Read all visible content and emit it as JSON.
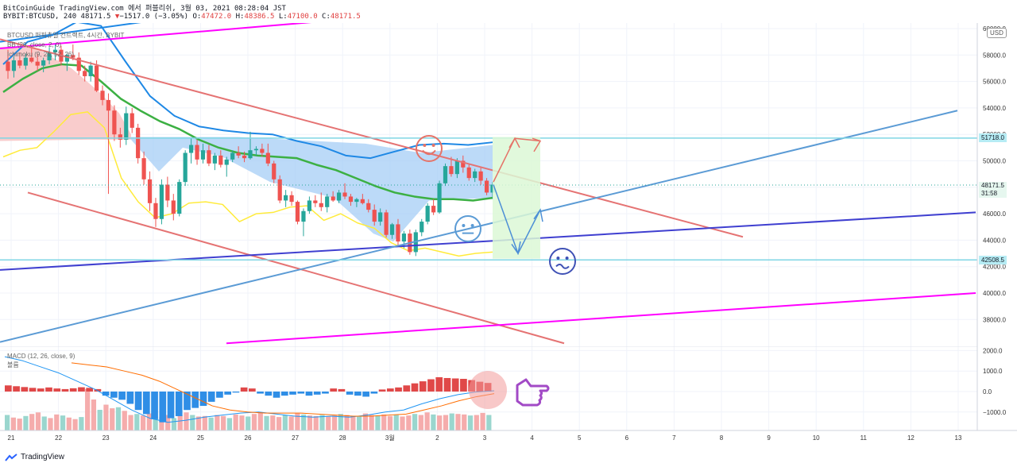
{
  "header": {
    "line1_prefix": "BitCoinGuide TradingView.com 에서 퍼블리쉬, 3월 03, 2021 08:28:04 JST",
    "symbol_line": "BYBIT:BTCUSD, 240 48171.5",
    "change_arrow": "▼",
    "change": "−1517.0 (−3.05%)",
    "o_label": "O:",
    "o_value": "47472.0",
    "h_label": "H:",
    "h_value": "48386.5",
    "l_label": "L:",
    "l_value": "47100.0",
    "c_label": "C:",
    "c_value": "48171.5"
  },
  "legend": {
    "main": "BTCUSD 퍼피츄얼 컨트랙트, 4시간, BYBIT",
    "bb": "BB (20, close, 2, 0)",
    "ichimoku": "Ichimoku (9, 26, 52, 26)",
    "macd": "MACD (12, 26, close, 9)",
    "macd_sub": "볼륨"
  },
  "currency_badge": "USD",
  "price_tags": [
    {
      "value": "51718.0",
      "color": "#b6ecf4"
    },
    {
      "value": "48171.5",
      "sub": "31:58",
      "color": "#e6f7ef"
    },
    {
      "value": "42508.5",
      "color": "#b6ecf4"
    }
  ],
  "footer": {
    "brand": "TradingView"
  },
  "colors": {
    "up": "#26a69a",
    "down": "#ef5350",
    "bb_basis": "#3cb043",
    "bb_upper": "#1e88e5",
    "tenkan": "#ffeb3b",
    "cloud_red": "#f8c3c3",
    "cloud_blue": "#9fcbf5",
    "magenta": "#ff00ff",
    "indigo": "#3f3fd0",
    "channel": "#e57373",
    "trend_blue": "#5b9bd5",
    "hline": "#7fd6e4"
  },
  "chart_data": [
    {
      "type": "candlestick",
      "title": "BTCUSD 퍼피츄얼 컨트랙트, 4시간, BYBIT",
      "timeframe": "240",
      "x_tick_labels": [
        "21",
        "22",
        "23",
        "24",
        "25",
        "26",
        "27",
        "28",
        "3월",
        "2",
        "3",
        "4",
        "5",
        "6",
        "7",
        "8",
        "9",
        "10",
        "11",
        "12",
        "13"
      ],
      "y_tick_labels": [
        "60000.0",
        "58000.0",
        "56000.0",
        "54000.0",
        "52000.0",
        "50000.0",
        "48000.0",
        "46000.0",
        "44000.0",
        "42000.0",
        "40000.0",
        "38000.0"
      ],
      "ylim": [
        36200,
        60500
      ],
      "candles_ohlc": [
        [
          57500,
          58400,
          56200,
          56800
        ],
        [
          56800,
          57900,
          56300,
          57600
        ],
        [
          57600,
          58200,
          57000,
          57200
        ],
        [
          57200,
          58100,
          56900,
          57800
        ],
        [
          57800,
          58500,
          57400,
          57500
        ],
        [
          57500,
          58100,
          56800,
          57200
        ],
        [
          57200,
          57800,
          56700,
          57600
        ],
        [
          57600,
          58600,
          57300,
          58200
        ],
        [
          58200,
          58900,
          57600,
          58400
        ],
        [
          58400,
          58700,
          57200,
          57500
        ],
        [
          57500,
          58100,
          56800,
          58000
        ],
        [
          58000,
          58800,
          57600,
          57800
        ],
        [
          57800,
          58200,
          56500,
          56800
        ],
        [
          56800,
          57200,
          56000,
          56400
        ],
        [
          56400,
          57500,
          56000,
          57200
        ],
        [
          57200,
          57600,
          55200,
          55300
        ],
        [
          55300,
          55700,
          54200,
          54600
        ],
        [
          54600,
          55100,
          47500,
          53800
        ],
        [
          53800,
          54200,
          51500,
          52000
        ],
        [
          52000,
          52500,
          51000,
          51600
        ],
        [
          51600,
          54100,
          51200,
          53600
        ],
        [
          53600,
          54000,
          52100,
          52500
        ],
        [
          52500,
          52800,
          49800,
          50200
        ],
        [
          50200,
          50700,
          48200,
          48600
        ],
        [
          48600,
          49200,
          46200,
          46800
        ],
        [
          46800,
          47200,
          45000,
          45600
        ],
        [
          45600,
          48600,
          45200,
          48200
        ],
        [
          48200,
          48800,
          46500,
          47000
        ],
        [
          47000,
          47500,
          45500,
          46000
        ],
        [
          46000,
          48600,
          45800,
          48400
        ],
        [
          48400,
          50800,
          48100,
          50600
        ],
        [
          50600,
          51700,
          49800,
          51200
        ],
        [
          51200,
          51600,
          49700,
          50100
        ],
        [
          50100,
          51300,
          49800,
          50800
        ],
        [
          50800,
          51200,
          49600,
          49800
        ],
        [
          49800,
          50600,
          49300,
          50400
        ],
        [
          50400,
          50800,
          49500,
          49700
        ],
        [
          49700,
          50300,
          48800,
          50100
        ],
        [
          50100,
          50800,
          49900,
          50600
        ],
        [
          50600,
          51100,
          50200,
          50400
        ],
        [
          50400,
          50700,
          49900,
          50200
        ],
        [
          50200,
          52200,
          50100,
          50800
        ],
        [
          50800,
          51100,
          50400,
          50900
        ],
        [
          50900,
          51300,
          50300,
          50600
        ],
        [
          50600,
          51300,
          49600,
          49800
        ],
        [
          49800,
          50000,
          48300,
          48600
        ],
        [
          48600,
          48900,
          46800,
          47000
        ],
        [
          47000,
          47800,
          46500,
          47400
        ],
        [
          47400,
          47700,
          46600,
          46900
        ],
        [
          46900,
          47000,
          45200,
          45400
        ],
        [
          45400,
          46400,
          44300,
          46200
        ],
        [
          46200,
          47300,
          46000,
          47000
        ],
        [
          47000,
          47400,
          46500,
          46800
        ],
        [
          46800,
          47600,
          46200,
          46500
        ],
        [
          46500,
          47500,
          46100,
          47300
        ],
        [
          47300,
          47700,
          46900,
          47000
        ],
        [
          47000,
          47800,
          46800,
          47600
        ],
        [
          47600,
          48300,
          47100,
          47300
        ],
        [
          47300,
          47500,
          46600,
          46900
        ],
        [
          46900,
          47200,
          46500,
          47100
        ],
        [
          47100,
          47500,
          46700,
          46800
        ],
        [
          46800,
          47100,
          46100,
          46300
        ],
        [
          46300,
          46700,
          45100,
          45400
        ],
        [
          45400,
          46400,
          45100,
          46100
        ],
        [
          46100,
          46300,
          44200,
          44400
        ],
        [
          44400,
          45300,
          44100,
          45200
        ],
        [
          45200,
          45600,
          43600,
          43900
        ],
        [
          43900,
          44700,
          43400,
          44500
        ],
        [
          44500,
          44800,
          42900,
          43100
        ],
        [
          43100,
          44800,
          42800,
          44600
        ],
        [
          44600,
          45600,
          44300,
          45400
        ],
        [
          45400,
          46800,
          45200,
          46600
        ],
        [
          46600,
          47100,
          45900,
          46100
        ],
        [
          46100,
          48500,
          46000,
          48300
        ],
        [
          48300,
          49800,
          48100,
          49600
        ],
        [
          49600,
          50300,
          48800,
          49000
        ],
        [
          49000,
          50200,
          48700,
          50000
        ],
        [
          50000,
          50400,
          49100,
          49500
        ],
        [
          49500,
          49800,
          48500,
          48700
        ],
        [
          48700,
          49400,
          48400,
          49200
        ],
        [
          49200,
          49500,
          48200,
          48500
        ],
        [
          48500,
          48700,
          47400,
          47600
        ],
        [
          47600,
          48400,
          47100,
          48200
        ]
      ],
      "bollinger_basis": [
        55200,
        56200,
        57000,
        57300,
        57200,
        56000,
        54700,
        53800,
        53000,
        52400,
        51600,
        51000,
        50600,
        50400,
        50300,
        50200,
        49700,
        49300,
        48700,
        48100,
        47600,
        47300,
        47100,
        47100,
        47000,
        47200
      ],
      "bollinger_upper": [
        57300,
        59000,
        59500,
        60500,
        60200,
        57500,
        54900,
        53400,
        52600,
        52300,
        52100,
        52000,
        51500,
        51100,
        50400,
        50200,
        50700,
        51200,
        51300,
        51200,
        51400
      ],
      "tenkan_sen": [
        50300,
        50800,
        51000,
        52200,
        53500,
        53700,
        52500,
        48700,
        46900,
        45700,
        46000,
        46800,
        46900,
        46700,
        45400,
        46000,
        46100,
        46500,
        46600,
        45500,
        46000,
        45300,
        44900,
        43800,
        43200,
        43400,
        43100,
        42800,
        43000,
        43100
      ],
      "horizontal_levels": [
        51718.0,
        42508.5
      ],
      "projection_lines": [
        [
          48400,
          51700
        ],
        [
          51700,
          51500
        ],
        [
          48200,
          43000
        ],
        [
          43000,
          46300
        ]
      ]
    },
    {
      "type": "macd",
      "title": "MACD (12, 26, close, 9)",
      "y_tick_labels": [
        "2000.0",
        "1000.0",
        "0.0",
        "−1000.0"
      ],
      "ylim": [
        -2000,
        2200
      ],
      "histogram": [
        300,
        260,
        220,
        180,
        150,
        200,
        150,
        120,
        160,
        210,
        180,
        120,
        -200,
        -300,
        -400,
        -600,
        -900,
        -1100,
        -1350,
        -1500,
        -1300,
        -1200,
        -900,
        -800,
        -700,
        -500,
        -300,
        -150,
        -50,
        200,
        150,
        -100,
        -200,
        -300,
        -200,
        -150,
        -100,
        -200,
        -150,
        -100,
        150,
        120,
        -150,
        -200,
        -250,
        -100,
        100,
        150,
        200,
        300,
        400,
        500,
        600,
        700,
        660,
        640,
        620,
        560,
        480,
        420
      ],
      "macd_line": [
        1700,
        1500,
        1200,
        900,
        500,
        100,
        -400,
        -900,
        -1300,
        -1500,
        -1400,
        -1250,
        -1150,
        -1050,
        -1000,
        -1100,
        -1200,
        -1250,
        -1200,
        -1250,
        -1150,
        -1000,
        -900,
        -600,
        -350,
        -150,
        -20,
        40
      ],
      "signal_line": [
        1400,
        1300,
        1200,
        1000,
        800,
        500,
        100,
        -300,
        -700,
        -900,
        -1000,
        -1050,
        -1050,
        -1050,
        -1100,
        -1150,
        -1200,
        -1200,
        -1150,
        -1100,
        -900,
        -700,
        -450,
        -250,
        -100
      ],
      "volume": [
        300,
        250,
        230,
        280,
        320,
        350,
        270,
        240,
        310,
        290,
        250,
        220,
        260,
        800,
        600,
        400,
        500,
        430,
        450,
        380,
        300,
        320,
        290,
        330,
        280,
        260,
        300,
        240,
        290,
        350,
        300,
        270,
        280,
        250,
        300,
        280,
        240,
        310,
        290,
        270,
        320,
        340,
        280,
        290,
        260,
        300,
        270,
        330,
        310,
        290,
        280,
        300,
        270,
        290,
        320,
        300,
        280,
        270,
        330,
        300,
        290,
        310,
        280,
        300,
        270,
        290,
        320,
        300,
        350,
        310,
        290,
        300,
        330,
        320,
        310,
        290,
        300,
        340,
        300
      ]
    }
  ]
}
